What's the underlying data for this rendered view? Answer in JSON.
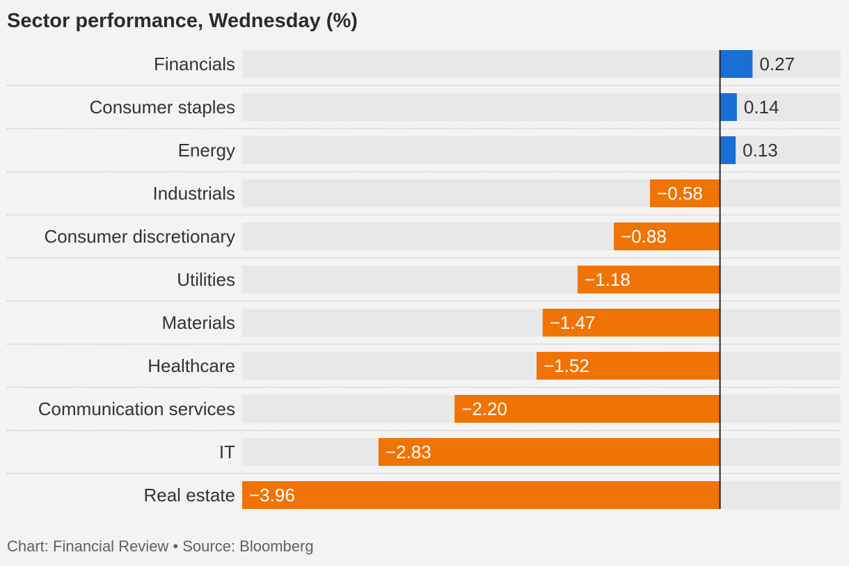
{
  "chart_data": {
    "type": "bar",
    "orientation": "horizontal",
    "title": "Sector performance, Wednesday (%)",
    "categories": [
      "Financials",
      "Consumer staples",
      "Energy",
      "Industrials",
      "Consumer discretionary",
      "Utilities",
      "Materials",
      "Healthcare",
      "Communication services",
      "IT",
      "Real estate"
    ],
    "values": [
      0.27,
      0.14,
      0.13,
      -0.58,
      -0.88,
      -1.18,
      -1.47,
      -1.52,
      -2.2,
      -2.83,
      -3.96
    ],
    "value_labels": [
      "0.27",
      "0.14",
      "0.13",
      "−0.58",
      "−0.88",
      "−1.18",
      "−1.47",
      "−1.52",
      "−2.20",
      "−2.83",
      "−3.96"
    ],
    "xlim": [
      -3.96,
      1.0
    ],
    "grid": false,
    "legend": "none",
    "colors": {
      "positive": "#1a6fd4",
      "negative": "#f07305",
      "track": "#e8e8e8",
      "zero_line": "#222222",
      "divider": "#bcbcbc"
    },
    "footer": "Chart: Financial Review • Source: Bloomberg"
  }
}
